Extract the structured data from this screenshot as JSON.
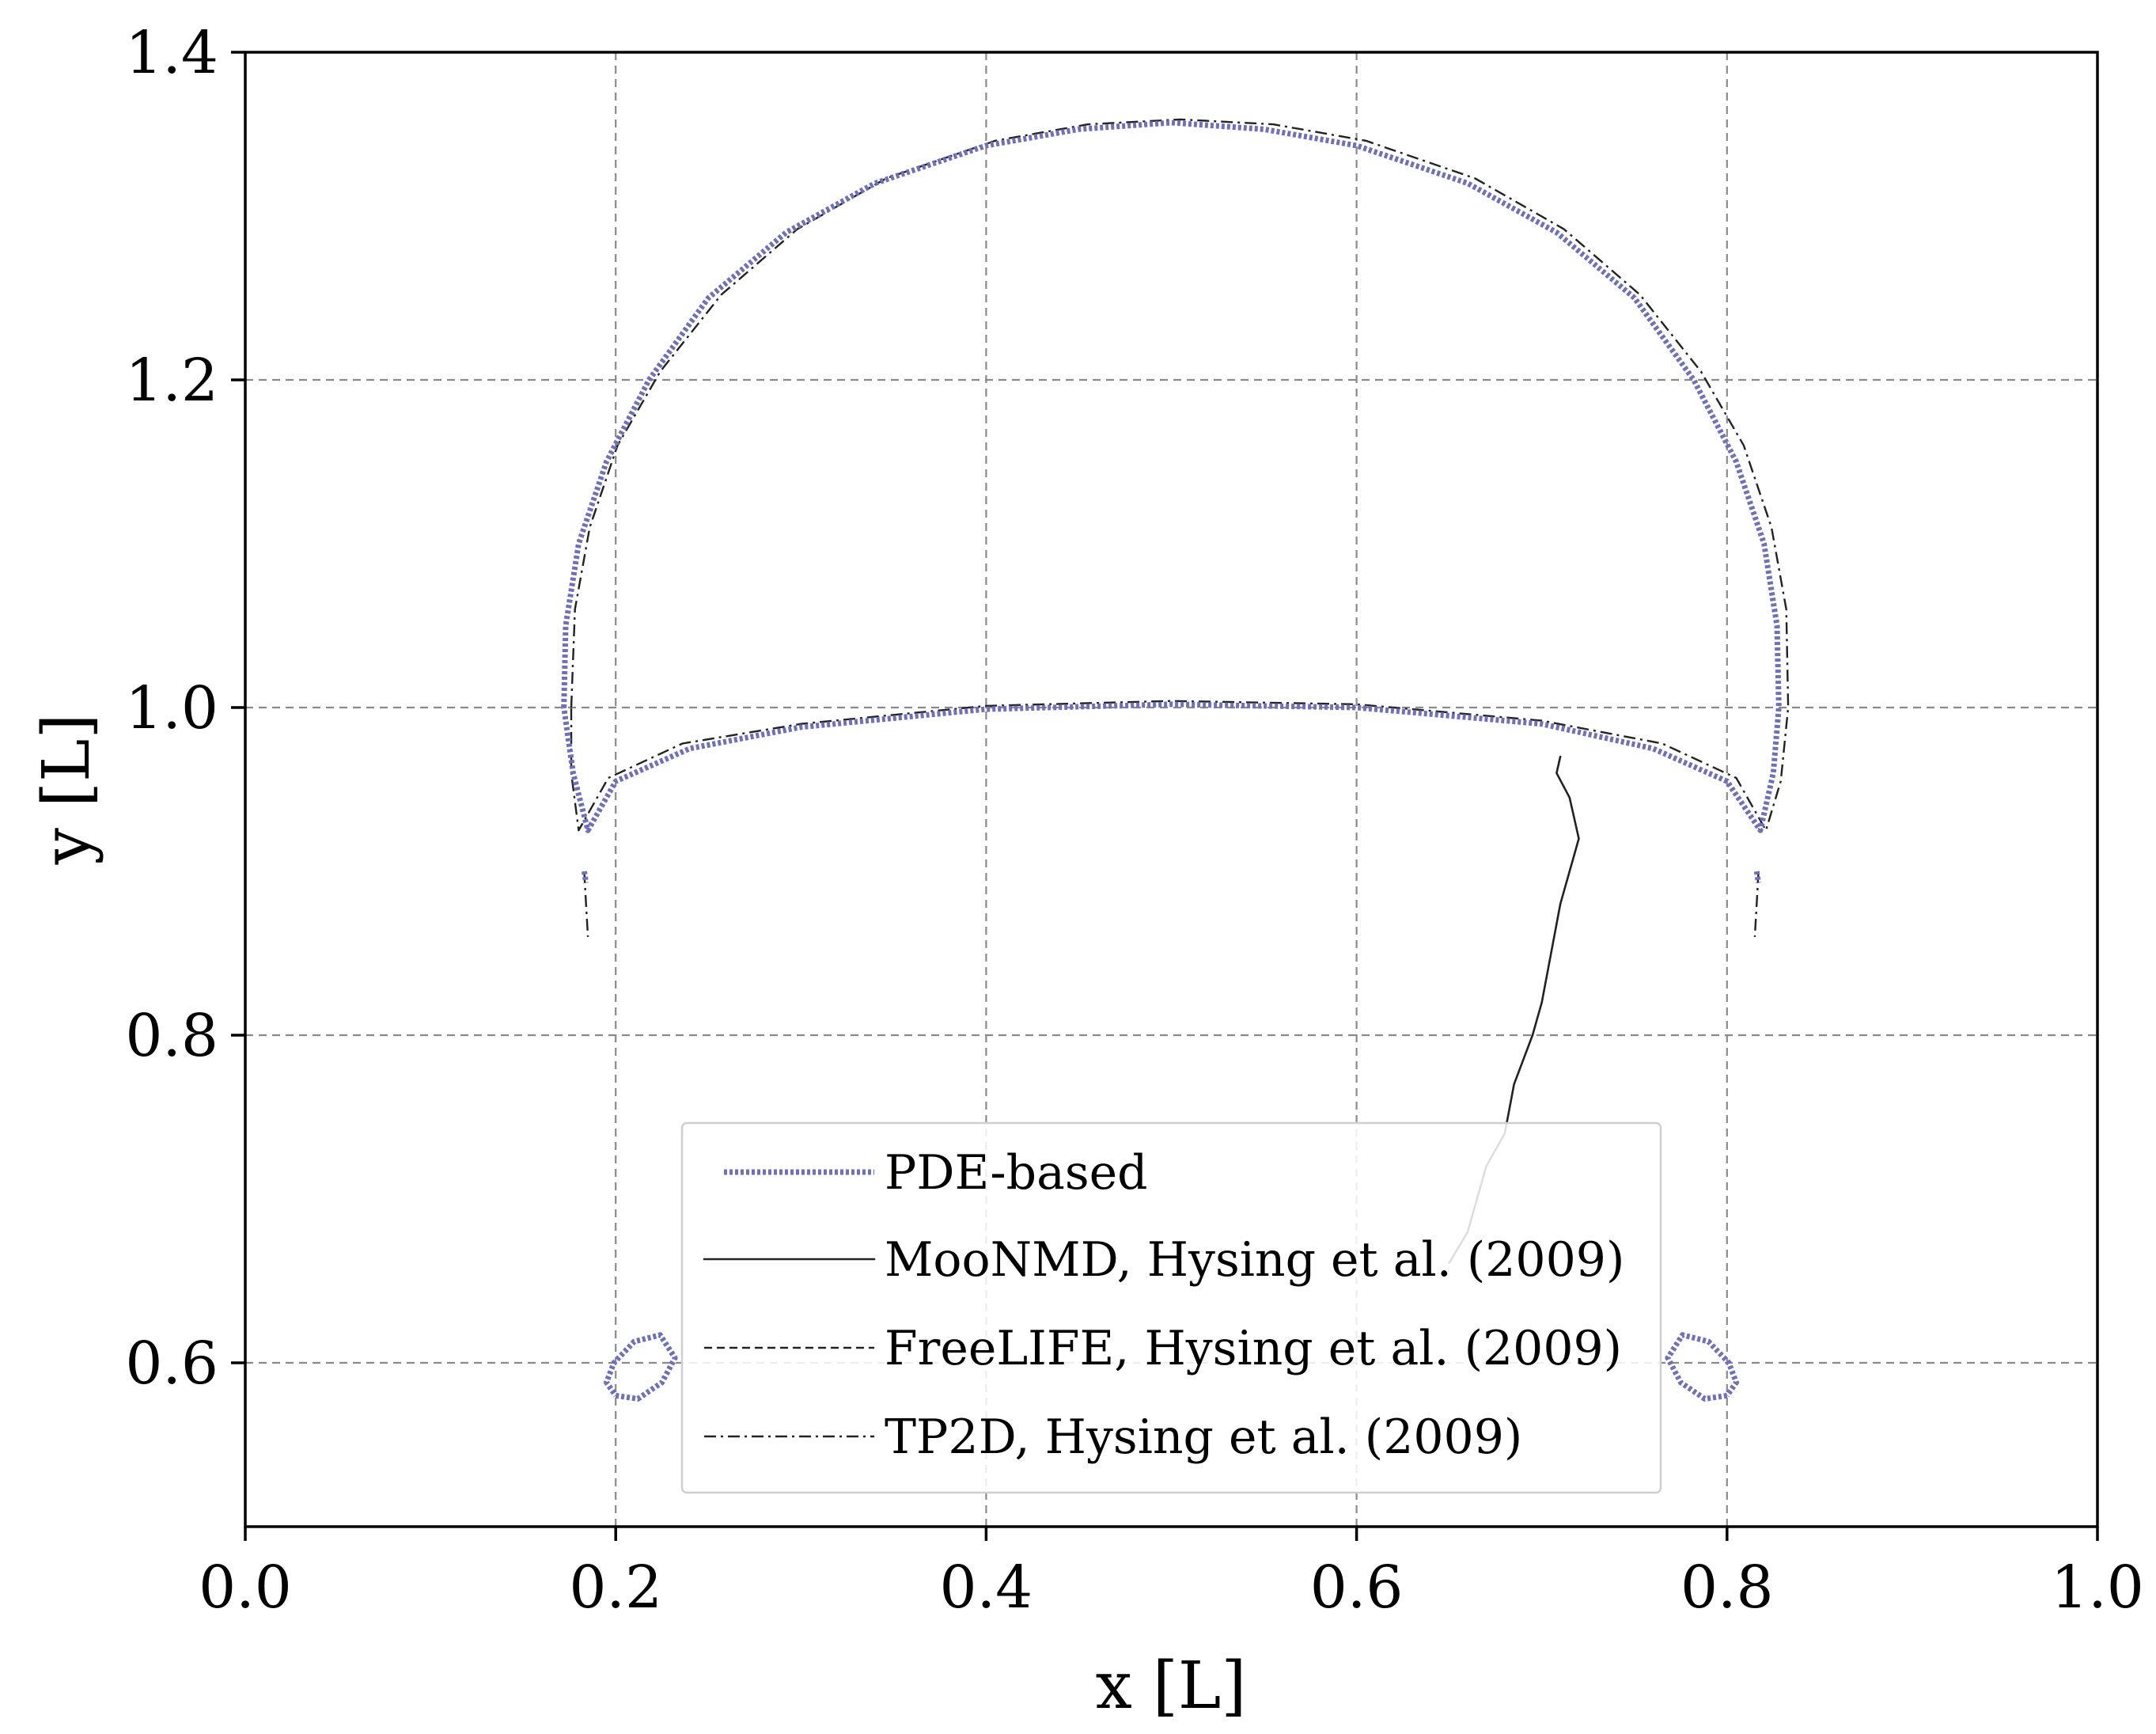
{
  "chart_data": {
    "type": "line",
    "title": "",
    "xlabel": "x [L]",
    "ylabel": "y [L]",
    "xlim": [
      0.0,
      1.0
    ],
    "ylim": [
      0.5,
      1.4
    ],
    "xticks": [
      0.0,
      0.2,
      0.4,
      0.6,
      0.8,
      1.0
    ],
    "xtick_labels": [
      "0.0",
      "0.2",
      "0.4",
      "0.6",
      "0.8",
      "1.0"
    ],
    "yticks": [
      0.6,
      0.8,
      1.0,
      1.2,
      1.4
    ],
    "ytick_labels": [
      "0.6",
      "0.8",
      "1.0",
      "1.2",
      "1.4"
    ],
    "grid": true,
    "legend_position": "bottom-center",
    "series": [
      {
        "name": "PDE-based",
        "color": "#7070b8",
        "dash": "dotted-thick",
        "segments": [
          [
            [
              0.172,
              1.0
            ],
            [
              0.173,
              1.05
            ],
            [
              0.18,
              1.1
            ],
            [
              0.195,
              1.15
            ],
            [
              0.218,
              1.2
            ],
            [
              0.25,
              1.25
            ],
            [
              0.292,
              1.29
            ],
            [
              0.34,
              1.32
            ],
            [
              0.4,
              1.343
            ],
            [
              0.45,
              1.353
            ],
            [
              0.5,
              1.357
            ],
            [
              0.55,
              1.353
            ],
            [
              0.6,
              1.343
            ],
            [
              0.66,
              1.32
            ],
            [
              0.708,
              1.29
            ],
            [
              0.75,
              1.25
            ],
            [
              0.782,
              1.2
            ],
            [
              0.805,
              1.15
            ],
            [
              0.82,
              1.1
            ],
            [
              0.827,
              1.05
            ],
            [
              0.828,
              1.0
            ],
            [
              0.825,
              0.96
            ],
            [
              0.818,
              0.925
            ],
            [
              0.8,
              0.955
            ],
            [
              0.76,
              0.975
            ],
            [
              0.7,
              0.99
            ],
            [
              0.6,
              1.0
            ],
            [
              0.5,
              1.002
            ],
            [
              0.4,
              0.999
            ],
            [
              0.3,
              0.988
            ],
            [
              0.24,
              0.975
            ],
            [
              0.2,
              0.955
            ],
            [
              0.185,
              0.925
            ],
            [
              0.177,
              0.96
            ],
            [
              0.172,
              1.0
            ]
          ],
          [
            [
              0.183,
              0.9
            ],
            [
              0.184,
              0.893
            ]
          ],
          [
            [
              0.816,
              0.9
            ],
            [
              0.817,
              0.893
            ]
          ],
          [
            [
              0.2,
              0.58
            ],
            [
              0.212,
              0.578
            ],
            [
              0.225,
              0.588
            ],
            [
              0.232,
              0.603
            ],
            [
              0.224,
              0.617
            ],
            [
              0.21,
              0.613
            ],
            [
              0.199,
              0.6
            ],
            [
              0.195,
              0.588
            ],
            [
              0.2,
              0.58
            ]
          ],
          [
            [
              0.8,
              0.58
            ],
            [
              0.788,
              0.578
            ],
            [
              0.775,
              0.588
            ],
            [
              0.768,
              0.603
            ],
            [
              0.776,
              0.617
            ],
            [
              0.79,
              0.613
            ],
            [
              0.801,
              0.6
            ],
            [
              0.805,
              0.588
            ],
            [
              0.8,
              0.58
            ]
          ]
        ]
      },
      {
        "name": "MooNMD, Hysing et al. (2009)",
        "color": "#222222",
        "dash": "solid",
        "segments": [
          [
            [
              0.65,
              0.661
            ],
            [
              0.66,
              0.68
            ],
            [
              0.665,
              0.7
            ],
            [
              0.67,
              0.72
            ],
            [
              0.68,
              0.74
            ],
            [
              0.685,
              0.77
            ],
            [
              0.695,
              0.8
            ],
            [
              0.7,
              0.82
            ],
            [
              0.705,
              0.85
            ],
            [
              0.71,
              0.88
            ],
            [
              0.72,
              0.92
            ],
            [
              0.715,
              0.945
            ],
            [
              0.708,
              0.96
            ],
            [
              0.71,
              0.97
            ]
          ]
        ]
      },
      {
        "name": "FreeLIFE, Hysing et al. (2009)",
        "color": "#222222",
        "dash": "dashed",
        "segments": []
      },
      {
        "name": "TP2D, Hysing et al. (2009)",
        "color": "#222222",
        "dash": "dashdot",
        "segments": [
          [
            [
              0.176,
              1.0
            ],
            [
              0.178,
              1.06
            ],
            [
              0.186,
              1.11
            ],
            [
              0.201,
              1.16
            ],
            [
              0.224,
              1.205
            ],
            [
              0.257,
              1.252
            ],
            [
              0.298,
              1.292
            ],
            [
              0.346,
              1.323
            ],
            [
              0.405,
              1.346
            ],
            [
              0.455,
              1.356
            ],
            [
              0.505,
              1.359
            ],
            [
              0.555,
              1.356
            ],
            [
              0.605,
              1.346
            ],
            [
              0.664,
              1.323
            ],
            [
              0.712,
              1.292
            ],
            [
              0.753,
              1.252
            ],
            [
              0.786,
              1.205
            ],
            [
              0.809,
              1.16
            ],
            [
              0.824,
              1.11
            ],
            [
              0.832,
              1.06
            ],
            [
              0.833,
              1.0
            ],
            [
              0.829,
              0.955
            ],
            [
              0.821,
              0.925
            ],
            [
              0.805,
              0.957
            ],
            [
              0.765,
              0.978
            ],
            [
              0.7,
              0.992
            ],
            [
              0.6,
              1.002
            ],
            [
              0.5,
              1.004
            ],
            [
              0.4,
              1.001
            ],
            [
              0.3,
              0.99
            ],
            [
              0.236,
              0.978
            ],
            [
              0.196,
              0.957
            ],
            [
              0.18,
              0.925
            ],
            [
              0.176,
              0.96
            ],
            [
              0.176,
              1.0
            ]
          ],
          [
            [
              0.183,
              0.9
            ],
            [
              0.184,
              0.88
            ],
            [
              0.185,
              0.86
            ]
          ],
          [
            [
              0.817,
              0.9
            ],
            [
              0.816,
              0.88
            ],
            [
              0.815,
              0.86
            ]
          ]
        ]
      }
    ]
  }
}
